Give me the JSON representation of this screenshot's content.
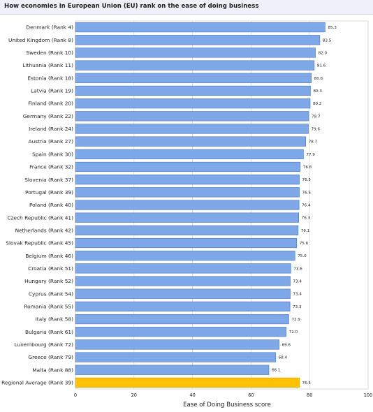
{
  "chart_data": {
    "type": "bar",
    "orientation": "horizontal",
    "title": "How economies in European Union (EU) rank on the ease of doing business",
    "xlabel": "Ease of Doing Business score",
    "ylabel": "",
    "xlim": [
      0,
      100
    ],
    "x_ticks": [
      0,
      20,
      40,
      60,
      80,
      100
    ],
    "grid": true,
    "categories": [
      "Denmark (Rank 4)",
      "United Kingdom (Rank 8)",
      "Sweden (Rank 10)",
      "Lithuania (Rank 11)",
      "Estonia (Rank 18)",
      "Latvia (Rank 19)",
      "Finland (Rank 20)",
      "Germany (Rank 22)",
      "Ireland (Rank 24)",
      "Austria (Rank 27)",
      "Spain (Rank 30)",
      "France (Rank 32)",
      "Slovenia (Rank 37)",
      "Portugal (Rank 39)",
      "Poland (Rank 40)",
      "Czech Republic (Rank 41)",
      "Netherlands (Rank 42)",
      "Slovak Republic (Rank 45)",
      "Belgium (Rank 46)",
      "Croatia (Rank 51)",
      "Hungary (Rank 52)",
      "Cyprus (Rank 54)",
      "Romania (Rank 55)",
      "Italy (Rank 58)",
      "Bulgaria (Rank 61)",
      "Luxembourg (Rank 72)",
      "Greece (Rank 79)",
      "Malta (Rank 88)",
      "Regional Average (Rank 39)"
    ],
    "values": [
      85.3,
      83.5,
      82.0,
      81.6,
      80.6,
      80.3,
      80.2,
      79.7,
      79.6,
      78.7,
      77.9,
      76.8,
      76.5,
      76.5,
      76.4,
      76.3,
      76.1,
      75.6,
      75.0,
      73.6,
      73.4,
      73.4,
      73.3,
      72.9,
      72.0,
      69.6,
      68.4,
      66.1,
      76.5
    ],
    "value_labels": [
      "85.3",
      "83.5",
      "82.0",
      "81.6",
      "80.6",
      "80.3",
      "80.2",
      "79.7",
      "79.6",
      "78.7",
      "77.9",
      "76.8",
      "76.5",
      "76.5",
      "76.4",
      "76.3",
      "76.1",
      "75.6",
      "75.0",
      "73.6",
      "73.4",
      "73.4",
      "73.3",
      "72.9",
      "72.0",
      "69.6",
      "68.4",
      "66.1",
      "76.5"
    ],
    "colors": {
      "bar": "#7fa8e8",
      "bar_border": "#4a72b8",
      "highlight_bar": "#ffc107",
      "highlight_border": "#c89a00",
      "grid": "#d9d9d9",
      "axis": "#888888"
    },
    "highlight_index": 28
  }
}
